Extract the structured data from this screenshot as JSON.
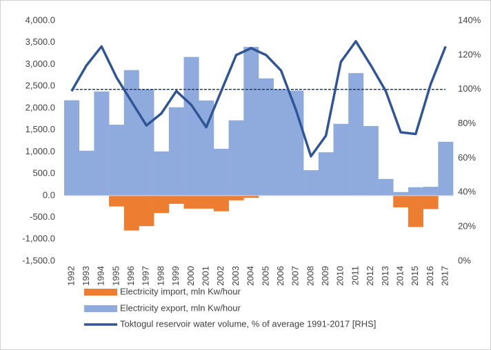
{
  "chart_data": {
    "type": "bar_line",
    "categories": [
      "1992",
      "1993",
      "1994",
      "1995",
      "1996",
      "1997",
      "1998",
      "1999",
      "2000",
      "2001",
      "2002",
      "2003",
      "2004",
      "2005",
      "2006",
      "2007",
      "2008",
      "2009",
      "2010",
      "2011",
      "2012",
      "2013",
      "2014",
      "2015",
      "2016",
      "2017"
    ],
    "series": [
      {
        "name": "Electricity import, mln Kw/hour",
        "color": "#ed7d31",
        "type": "bar",
        "values": [
          0,
          0,
          0,
          -250,
          -800,
          -700,
          -400,
          -190,
          -300,
          -300,
          -360,
          -110,
          -50,
          0,
          0,
          0,
          0,
          0,
          0,
          0,
          0,
          0,
          -270,
          -720,
          -310,
          0
        ]
      },
      {
        "name": "Electricity export, mln Kw/hour",
        "color": "#8faadc",
        "type": "bar",
        "values": [
          2180,
          1025,
          2380,
          1620,
          2870,
          2430,
          1010,
          2020,
          3170,
          2175,
          1070,
          1720,
          3400,
          2680,
          2430,
          2400,
          580,
          990,
          1640,
          2800,
          1590,
          380,
          80,
          190,
          200,
          1230
        ]
      },
      {
        "name": "Toktogul reservoir water volume, % of average 1991-2017 [RHS]",
        "color": "#2f5597",
        "type": "line",
        "axis": "y2",
        "values": [
          99,
          114,
          125,
          107,
          93,
          79,
          86,
          99,
          91,
          78,
          99,
          120,
          124,
          120,
          111,
          88,
          61,
          73,
          116,
          128,
          114,
          99,
          75,
          74,
          103,
          125
        ]
      }
    ],
    "reference_line": {
      "axis": "y2",
      "value": 100,
      "color": "#1f3864"
    },
    "ylim": [
      -1500,
      4000
    ],
    "yticks": [
      {
        "value": -1500,
        "label": "-1,500.0"
      },
      {
        "value": -1000,
        "label": "-1,000.0"
      },
      {
        "value": -500,
        "label": "-500.0"
      },
      {
        "value": 0,
        "label": "0.0"
      },
      {
        "value": 500,
        "label": "500.0"
      },
      {
        "value": 1000,
        "label": "1,000.0"
      },
      {
        "value": 1500,
        "label": "1,500.0"
      },
      {
        "value": 2000,
        "label": "2,000.0"
      },
      {
        "value": 2500,
        "label": "2,500.0"
      },
      {
        "value": 3000,
        "label": "3,000.0"
      },
      {
        "value": 3500,
        "label": "3,500.0"
      },
      {
        "value": 4000,
        "label": "4,000.0"
      }
    ],
    "y2lim": [
      0,
      140
    ],
    "y2ticks": [
      {
        "value": 0,
        "label": "0%"
      },
      {
        "value": 20,
        "label": "20%"
      },
      {
        "value": 40,
        "label": "40%"
      },
      {
        "value": 60,
        "label": "60%"
      },
      {
        "value": 80,
        "label": "80%"
      },
      {
        "value": 100,
        "label": "100%"
      },
      {
        "value": 120,
        "label": "120%"
      },
      {
        "value": 140,
        "label": "140%"
      }
    ]
  }
}
